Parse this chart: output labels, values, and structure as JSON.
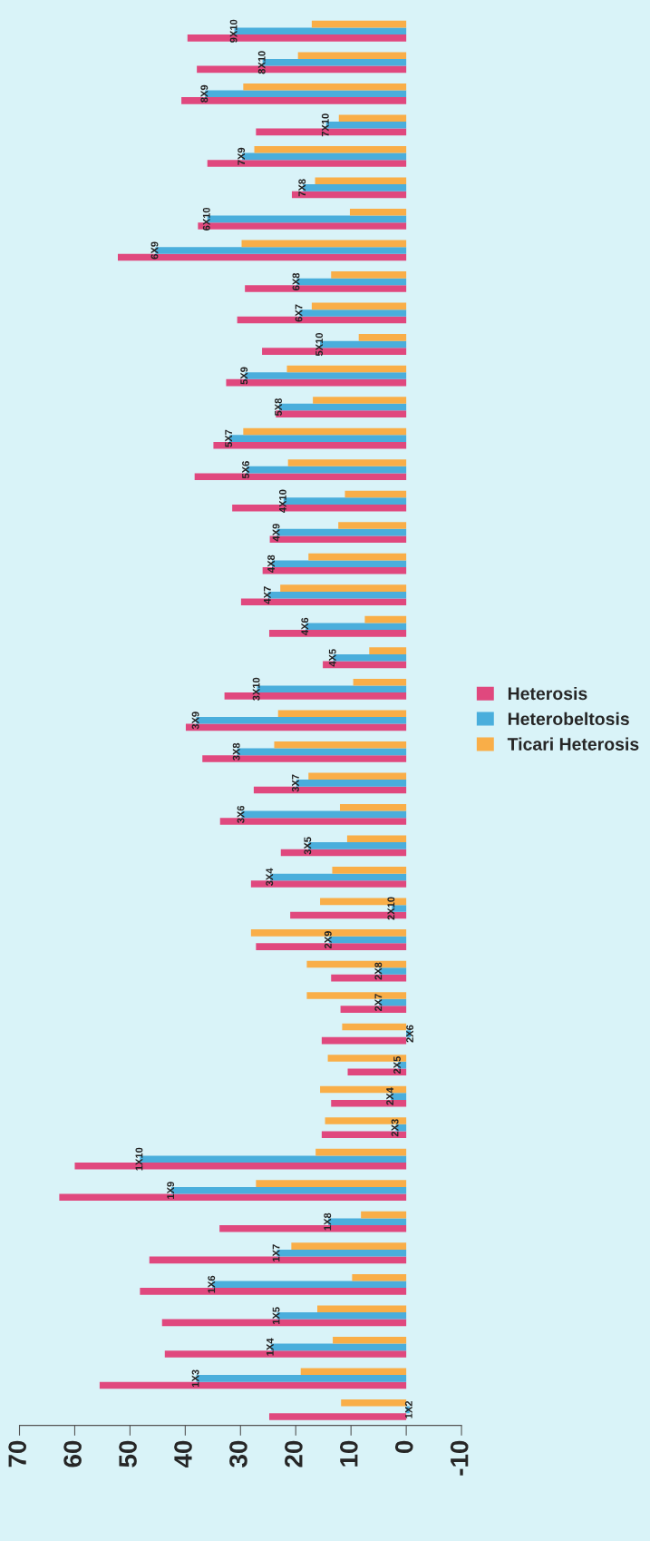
{
  "chart_data": {
    "type": "bar",
    "orientation": "horizontal",
    "categories": [
      "9X10",
      "8X10",
      "8X9",
      "7X10",
      "7X9",
      "7X8",
      "6X10",
      "6X9",
      "6X8",
      "6X7",
      "5X10",
      "5X9",
      "5X8",
      "5X7",
      "5X6",
      "4X10",
      "4X9",
      "4X8",
      "4X7",
      "4X6",
      "4X5",
      "3X10",
      "3X9",
      "3X8",
      "3X7",
      "3X6",
      "3X5",
      "3X4",
      "2X10",
      "2X9",
      "2X8",
      "2X7",
      "2X6",
      "2X5",
      "2X4",
      "2X3",
      "1X10",
      "1X9",
      "1X8",
      "1X7",
      "1X6",
      "1X5",
      "1X4",
      "1X3",
      "1X2"
    ],
    "series": [
      {
        "name": "Heterosis",
        "color": "#e0487e",
        "values": [
          39.6,
          37.9,
          40.7,
          27.2,
          36.0,
          20.7,
          37.7,
          52.2,
          29.2,
          30.6,
          26.1,
          32.6,
          23.6,
          34.9,
          38.3,
          31.5,
          24.7,
          26.0,
          29.9,
          24.8,
          15.1,
          32.9,
          39.9,
          36.9,
          27.6,
          33.7,
          22.7,
          28.1,
          21.0,
          27.2,
          13.6,
          11.9,
          15.3,
          10.6,
          13.6,
          15.3,
          60.0,
          62.8,
          33.8,
          46.5,
          48.2,
          44.2,
          43.7,
          55.5,
          24.8
        ]
      },
      {
        "name": "Heterobeltosis",
        "color": "#4aaedc",
        "values": [
          31.1,
          26.0,
          36.4,
          14.5,
          29.7,
          18.7,
          36.0,
          45.4,
          19.8,
          19.3,
          15.6,
          29.2,
          23.0,
          32.0,
          28.9,
          22.2,
          23.4,
          24.3,
          25.0,
          18.2,
          13.2,
          27.0,
          38.0,
          30.6,
          19.9,
          29.8,
          17.7,
          24.6,
          2.6,
          14.0,
          4.9,
          4.9,
          -0.8,
          1.5,
          2.8,
          1.9,
          48.2,
          42.5,
          14.1,
          23.4,
          35.1,
          23.4,
          24.5,
          38.0,
          -0.6
        ]
      },
      {
        "name": "Ticari Heterosis",
        "color": "#f9ae48",
        "values": [
          17.1,
          19.6,
          29.5,
          12.2,
          27.5,
          16.5,
          10.2,
          29.8,
          13.6,
          17.1,
          8.6,
          21.6,
          16.9,
          29.5,
          21.4,
          11.1,
          12.3,
          17.7,
          22.8,
          7.5,
          6.7,
          9.6,
          23.2,
          23.9,
          17.7,
          12.0,
          10.7,
          13.4,
          15.6,
          28.1,
          18.0,
          18.0,
          11.6,
          14.2,
          15.6,
          14.7,
          16.4,
          27.2,
          8.2,
          20.8,
          9.8,
          16.1,
          13.3,
          19.1,
          11.8
        ]
      }
    ],
    "xlim": [
      70,
      -10
    ],
    "xticks": [
      70,
      60,
      50,
      40,
      30,
      20,
      10,
      0,
      -10
    ],
    "grid": false,
    "legend": "right"
  }
}
